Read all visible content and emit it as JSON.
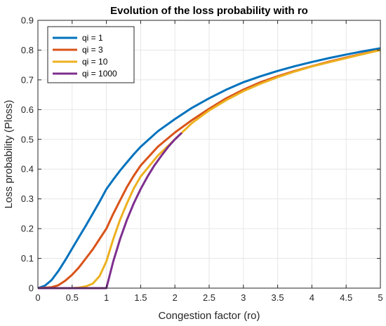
{
  "chart_data": {
    "type": "line",
    "title": "Evolution of the loss probability with ro",
    "xlabel": "Congestion factor (ro)",
    "ylabel": "Loss probability (Ploss)",
    "xlim": [
      0,
      5
    ],
    "ylim": [
      0,
      0.9
    ],
    "xticks": [
      0,
      0.5,
      1,
      1.5,
      2,
      2.5,
      3,
      3.5,
      4,
      4.5,
      5
    ],
    "xtick_labels": [
      "0",
      "0.5",
      "1",
      "1.5",
      "2",
      "2.5",
      "3",
      "3.5",
      "4",
      "4.5",
      "5"
    ],
    "yticks": [
      0,
      0.1,
      0.2,
      0.3,
      0.4,
      0.5,
      0.6,
      0.7,
      0.8,
      0.9
    ],
    "ytick_labels": [
      "0",
      "0.1",
      "0.2",
      "0.3",
      "0.4",
      "0.5",
      "0.6",
      "0.7",
      "0.8",
      "0.9"
    ],
    "grid": true,
    "legend_position": "top-left",
    "series": [
      {
        "name": "qi = 1",
        "color": "#0072BD",
        "x": [
          0,
          0.1,
          0.2,
          0.3,
          0.4,
          0.5,
          0.6,
          0.7,
          0.8,
          0.9,
          1.0,
          1.1,
          1.2,
          1.3,
          1.4,
          1.5,
          1.75,
          2.0,
          2.25,
          2.5,
          2.75,
          3.0,
          3.25,
          3.5,
          3.75,
          4.0,
          4.25,
          4.5,
          4.75,
          5.0
        ],
        "y": [
          0,
          0.008,
          0.027,
          0.058,
          0.094,
          0.133,
          0.172,
          0.21,
          0.25,
          0.29,
          0.333,
          0.365,
          0.395,
          0.423,
          0.45,
          0.475,
          0.527,
          0.568,
          0.606,
          0.638,
          0.667,
          0.692,
          0.712,
          0.73,
          0.746,
          0.76,
          0.773,
          0.785,
          0.796,
          0.806
        ]
      },
      {
        "name": "qi = 3",
        "color": "#D95319",
        "x": [
          0,
          0.2,
          0.3,
          0.4,
          0.5,
          0.6,
          0.7,
          0.8,
          0.9,
          1.0,
          1.1,
          1.2,
          1.3,
          1.4,
          1.5,
          1.75,
          2.0,
          2.25,
          2.5,
          2.75,
          3.0,
          3.25,
          3.5,
          3.75,
          4.0,
          4.25,
          4.5,
          4.75,
          5.0
        ],
        "y": [
          0,
          0.003,
          0.01,
          0.025,
          0.045,
          0.07,
          0.1,
          0.13,
          0.165,
          0.2,
          0.25,
          0.295,
          0.34,
          0.378,
          0.412,
          0.475,
          0.523,
          0.565,
          0.603,
          0.638,
          0.667,
          0.692,
          0.712,
          0.73,
          0.746,
          0.761,
          0.775,
          0.788,
          0.8
        ]
      },
      {
        "name": "qi = 10",
        "color": "#EDB120",
        "x": [
          0,
          0.5,
          0.6,
          0.7,
          0.8,
          0.9,
          1.0,
          1.1,
          1.2,
          1.3,
          1.4,
          1.5,
          1.75,
          2.0,
          2.25,
          2.5,
          2.75,
          3.0,
          3.25,
          3.5,
          3.75,
          4.0,
          4.25,
          4.5,
          4.75,
          5.0
        ],
        "y": [
          0,
          0.0,
          0.002,
          0.006,
          0.015,
          0.04,
          0.09,
          0.165,
          0.23,
          0.285,
          0.335,
          0.375,
          0.445,
          0.5,
          0.555,
          0.597,
          0.632,
          0.662,
          0.687,
          0.709,
          0.728,
          0.745,
          0.759,
          0.773,
          0.787,
          0.8
        ]
      },
      {
        "name": "qi = 1000",
        "color": "#7E2F8E",
        "x": [
          0,
          0.98,
          1.0,
          1.05,
          1.1,
          1.2,
          1.3,
          1.4,
          1.5,
          1.6,
          1.7,
          1.8,
          1.9,
          2.0,
          2.1
        ],
        "y": [
          0,
          0.0,
          0.0,
          0.045,
          0.09,
          0.165,
          0.23,
          0.285,
          0.333,
          0.375,
          0.412,
          0.444,
          0.474,
          0.5,
          0.522
        ]
      }
    ]
  }
}
